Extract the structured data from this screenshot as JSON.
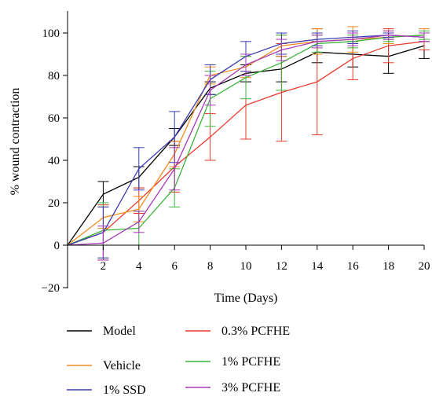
{
  "chart_data": {
    "type": "line",
    "title": "",
    "xlabel": "Time (Days)",
    "ylabel": "% wound contraction",
    "x": [
      0,
      2,
      4,
      6,
      8,
      10,
      12,
      14,
      16,
      18,
      20
    ],
    "xticks": [
      2,
      4,
      6,
      8,
      10,
      12,
      14,
      16,
      18,
      20
    ],
    "yticks": [
      -20,
      0,
      20,
      40,
      60,
      80,
      100
    ],
    "xlim": [
      0,
      20
    ],
    "ylim": [
      -20,
      110
    ],
    "grid": false,
    "legend_position": "bottom",
    "error_bars": true,
    "series": [
      {
        "name": "Model",
        "color": "#000000",
        "values": [
          0,
          24,
          32,
          51,
          74,
          81,
          83,
          91,
          90,
          89,
          94
        ],
        "errors": [
          0,
          6,
          5,
          4,
          3,
          4,
          6,
          5,
          6,
          8,
          6
        ]
      },
      {
        "name": "0.3% PCFHE",
        "color": "#e8392c",
        "values": [
          0,
          6,
          21,
          37,
          51,
          66,
          72,
          77,
          88,
          94,
          96
        ],
        "errors": [
          0,
          13,
          6,
          12,
          11,
          16,
          23,
          25,
          10,
          8,
          4
        ]
      },
      {
        "name": "Vehicle",
        "color": "#f28c1e",
        "values": [
          0,
          13,
          17,
          43,
          80,
          84,
          94,
          96,
          97,
          98,
          99
        ],
        "errors": [
          0,
          5,
          6,
          6,
          4,
          5,
          5,
          6,
          6,
          3,
          3
        ]
      },
      {
        "name": "1% PCFHE",
        "color": "#3cb43c",
        "values": [
          0,
          7,
          8,
          27,
          69,
          79,
          86,
          95,
          96,
          98,
          99
        ],
        "errors": [
          0,
          13,
          8,
          9,
          13,
          10,
          13,
          4,
          3,
          2,
          2
        ]
      },
      {
        "name": "1% SSD",
        "color": "#3c3cb4",
        "values": [
          0,
          6,
          36,
          51,
          78,
          89,
          95,
          97,
          98,
          99,
          98
        ],
        "errors": [
          0,
          12,
          10,
          12,
          7,
          7,
          5,
          3,
          3,
          1,
          2
        ]
      },
      {
        "name": "3% PCFHE",
        "color": "#a63cb4",
        "values": [
          0,
          1,
          11,
          36,
          73,
          85,
          92,
          96,
          97,
          99,
          98
        ],
        "errors": [
          0,
          8,
          5,
          10,
          7,
          5,
          5,
          3,
          3,
          2,
          2
        ]
      }
    ]
  }
}
